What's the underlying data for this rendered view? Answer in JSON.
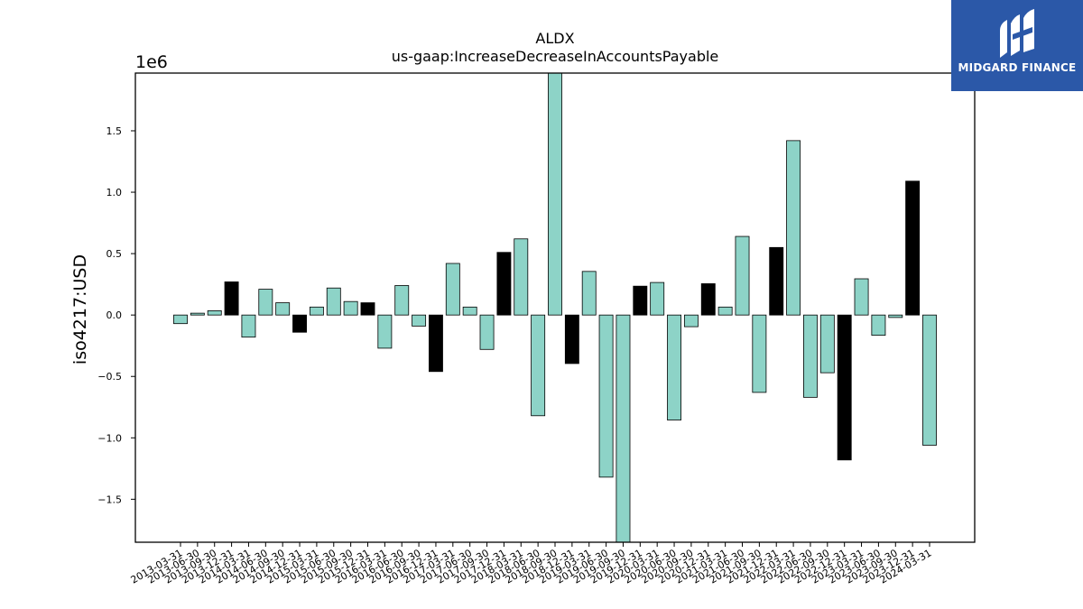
{
  "chart_data": {
    "type": "bar",
    "title": "ALDX",
    "subtitle": "us-gaap:IncreaseDecreaseInAccountsPayable",
    "ylabel": "iso4217:USD",
    "xlabel": "",
    "offset_label": "1e6",
    "ylim": [
      -1850000,
      1970000
    ],
    "yticks": [
      -1500000,
      -1000000,
      -500000,
      0,
      500000,
      1000000,
      1500000
    ],
    "ytick_labels": [
      "−1.5",
      "−1.0",
      "−0.5",
      "0.0",
      "0.5",
      "1.0",
      "1.5"
    ],
    "categories": [
      "2013-03-31",
      "2013-06-30",
      "2013-09-30",
      "2013-12-31",
      "2014-03-31",
      "2014-06-30",
      "2014-09-30",
      "2014-12-31",
      "2015-03-31",
      "2015-06-30",
      "2015-09-30",
      "2015-12-31",
      "2016-03-31",
      "2016-06-30",
      "2016-09-30",
      "2016-12-31",
      "2017-03-31",
      "2017-06-30",
      "2017-09-30",
      "2017-12-31",
      "2018-03-31",
      "2018-06-30",
      "2018-09-30",
      "2018-12-31",
      "2019-03-31",
      "2019-06-30",
      "2019-09-30",
      "2019-12-31",
      "2020-03-31",
      "2020-06-30",
      "2020-09-30",
      "2020-12-31",
      "2021-03-31",
      "2021-06-30",
      "2021-09-30",
      "2021-12-31",
      "2022-03-31",
      "2022-06-30",
      "2022-09-30",
      "2022-12-31",
      "2023-03-31",
      "2023-06-30",
      "2023-09-30",
      "2023-12-31",
      "2024-03-31"
    ],
    "values": [
      -70000,
      15000,
      35000,
      270000,
      -180000,
      210000,
      100000,
      -140000,
      65000,
      220000,
      110000,
      100000,
      -270000,
      240000,
      -90000,
      -460000,
      420000,
      65000,
      -280000,
      510000,
      620000,
      -820000,
      1970000,
      -395000,
      355000,
      -1320000,
      -1850000,
      235000,
      265000,
      -855000,
      -95000,
      255000,
      65000,
      640000,
      -630000,
      550000,
      1420000,
      -670000,
      -470000,
      -1180000,
      295000,
      -165000,
      -20000,
      1090000,
      -1060000
    ],
    "colors": [
      "#8dd3c7",
      "#8dd3c7",
      "#8dd3c7",
      "#000000",
      "#8dd3c7",
      "#8dd3c7",
      "#8dd3c7",
      "#000000",
      "#8dd3c7",
      "#8dd3c7",
      "#8dd3c7",
      "#000000",
      "#8dd3c7",
      "#8dd3c7",
      "#8dd3c7",
      "#000000",
      "#8dd3c7",
      "#8dd3c7",
      "#8dd3c7",
      "#000000",
      "#8dd3c7",
      "#8dd3c7",
      "#8dd3c7",
      "#000000",
      "#8dd3c7",
      "#8dd3c7",
      "#8dd3c7",
      "#000000",
      "#8dd3c7",
      "#8dd3c7",
      "#8dd3c7",
      "#000000",
      "#8dd3c7",
      "#8dd3c7",
      "#8dd3c7",
      "#000000",
      "#8dd3c7",
      "#8dd3c7",
      "#8dd3c7",
      "#000000",
      "#8dd3c7",
      "#8dd3c7",
      "#8dd3c7",
      "#000000",
      "#8dd3c7"
    ],
    "grid": false,
    "legend": "none"
  },
  "logo": {
    "text": "MIDGARD FINANCE",
    "background": "#2b58a8",
    "icon": "midgard-m-logo"
  }
}
